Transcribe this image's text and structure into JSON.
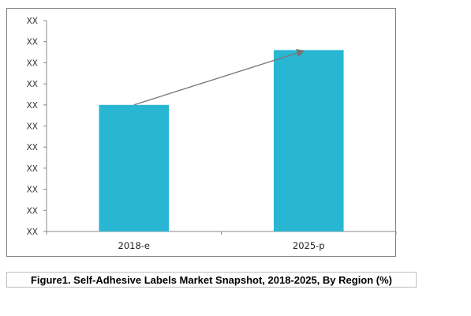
{
  "caption": "Figure1. Self-Adhesive Labels Market Snapshot, 2018-2025, By Region (%)",
  "colors": {
    "bar": "#29b6d3",
    "axis": "#888888",
    "arrow": "#767676"
  },
  "chart_data": {
    "type": "bar",
    "categories": [
      "2018-e",
      "2025-p"
    ],
    "values": [
      6,
      8.6
    ],
    "ylim": [
      0,
      10
    ],
    "y_tick_labels": [
      "XX",
      "XX",
      "XX",
      "XX",
      "XX",
      "XX",
      "XX",
      "XX",
      "XX",
      "XX",
      "XX"
    ],
    "title": "",
    "xlabel": "",
    "ylabel": "",
    "grid": false,
    "legend": "none",
    "annotations": [
      {
        "type": "arrow",
        "from": "2018-e",
        "to": "2025-p"
      }
    ]
  }
}
